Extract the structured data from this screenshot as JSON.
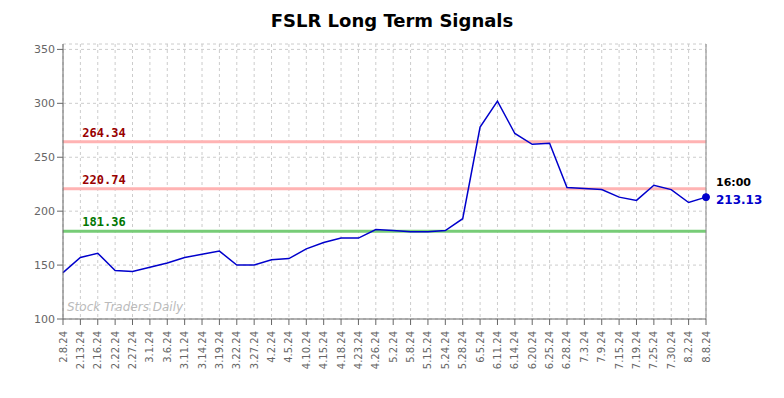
{
  "chart_data": {
    "type": "line",
    "title": "FSLR Long Term Signals",
    "categories": [
      "2.8.24",
      "2.13.24",
      "2.16.24",
      "2.22.24",
      "2.27.24",
      "3.1.24",
      "3.6.24",
      "3.11.24",
      "3.14.24",
      "3.19.24",
      "3.22.24",
      "3.27.24",
      "4.2.24",
      "4.5.24",
      "4.10.24",
      "4.15.24",
      "4.18.24",
      "4.23.24",
      "4.26.24",
      "5.2.24",
      "5.8.24",
      "5.15.24",
      "5.24.24",
      "5.28.24",
      "6.5.24",
      "6.11.24",
      "6.14.24",
      "6.20.24",
      "6.25.24",
      "6.28.24",
      "7.3.24",
      "7.9.24",
      "7.15.24",
      "7.19.24",
      "7.25.24",
      "7.30.24",
      "8.2.24",
      "8.8.24"
    ],
    "values": [
      143,
      157,
      161,
      145,
      144,
      148,
      152,
      157,
      160,
      163,
      150,
      150,
      155,
      156,
      165,
      171,
      175,
      175,
      183,
      182,
      181,
      181,
      182,
      193,
      278,
      302,
      272,
      262,
      263,
      222,
      221,
      220,
      213,
      210,
      224,
      220,
      208,
      213
    ],
    "color": "#0000cc",
    "ylim": [
      100,
      355
    ],
    "yticks": [
      100,
      150,
      200,
      250,
      300,
      350
    ],
    "grid": true,
    "hlines": [
      {
        "value": 264.34,
        "color": "#ffb3b3",
        "label": "264.34",
        "label_color": "#990000"
      },
      {
        "value": 220.74,
        "color": "#ffb3b3",
        "label": "220.74",
        "label_color": "#990000"
      },
      {
        "value": 181.36,
        "color": "#77cc77",
        "label": "181.36",
        "label_color": "#007700"
      }
    ],
    "vline": {
      "x": "8.8.24",
      "color": "#888888"
    },
    "end_label": {
      "time": "16:00",
      "time_color": "#000000",
      "text": "213.13",
      "value": 213.13,
      "color": "#0000cc"
    },
    "watermark": {
      "text": "Stock Traders Daily",
      "color": "#bbbbbb"
    }
  }
}
